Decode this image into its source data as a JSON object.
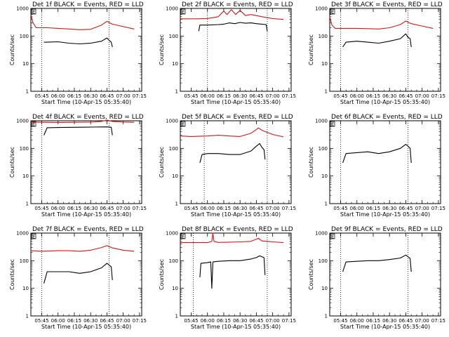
{
  "colors": {
    "events": "#000000",
    "lld": "#d01818",
    "axis": "#000000",
    "background": "#ffffff"
  },
  "chart_data": [
    {
      "type": "line",
      "title": "Det 1f BLACK = Events, RED = LLD",
      "corner_label": "E",
      "xlabel": "Start Time (10-Apr-15 05:35:40)",
      "ylabel": "Counts/sec",
      "yscale": "log",
      "ylim": [
        1,
        1000
      ],
      "y_ticks": [
        "1",
        "10",
        "100",
        "1000"
      ],
      "x_ticks": [
        "05:45",
        "06:00",
        "06:15",
        "06:30",
        "06:45",
        "07:00",
        "07:15"
      ],
      "vlines": [
        "05:45",
        "06:47"
      ],
      "series": [
        {
          "name": "Events",
          "color": "#000000",
          "x": [
            "05:47",
            "05:50",
            "06:00",
            "06:10",
            "06:20",
            "06:30",
            "06:40",
            "06:45",
            "06:47",
            "06:49",
            "06:50"
          ],
          "y": [
            60,
            60,
            62,
            55,
            52,
            55,
            65,
            85,
            70,
            60,
            40
          ]
        },
        {
          "name": "LLD",
          "color": "#d01818",
          "x": [
            "05:35",
            "05:37",
            "05:40",
            "05:50",
            "06:00",
            "06:10",
            "06:20",
            "06:30",
            "06:40",
            "06:45",
            "06:50",
            "07:00",
            "07:10"
          ],
          "y": [
            600,
            300,
            200,
            200,
            190,
            180,
            170,
            175,
            250,
            340,
            270,
            220,
            180
          ]
        }
      ]
    },
    {
      "type": "line",
      "title": "Det 2f BLACK = Events, RED = LLD",
      "corner_label": "E",
      "xlabel": "Start Time (10-Apr-15 05:35:40)",
      "ylabel": "Counts/sec",
      "yscale": "log",
      "ylim": [
        1,
        1000
      ],
      "y_ticks": [
        "1",
        "10",
        "100",
        "1000"
      ],
      "x_ticks": [
        "05:45",
        "06:00",
        "06:15",
        "06:30",
        "06:45",
        "07:00",
        "07:15"
      ],
      "vlines": [
        "06:00",
        "06:55"
      ],
      "series": [
        {
          "name": "Events",
          "color": "#000000",
          "x": [
            "05:52",
            "05:53",
            "06:00",
            "06:10",
            "06:15",
            "06:20",
            "06:25",
            "06:30",
            "06:35",
            "06:40",
            "06:45",
            "06:50",
            "06:54",
            "06:55"
          ],
          "y": [
            150,
            250,
            250,
            260,
            270,
            300,
            280,
            310,
            290,
            300,
            280,
            270,
            260,
            150
          ]
        },
        {
          "name": "LLD",
          "color": "#d01818",
          "x": [
            "05:35",
            "05:50",
            "06:00",
            "06:10",
            "06:15",
            "06:18",
            "06:22",
            "06:26",
            "06:30",
            "06:35",
            "06:40",
            "06:45",
            "06:50",
            "07:00",
            "07:10"
          ],
          "y": [
            420,
            420,
            430,
            500,
            800,
            600,
            900,
            600,
            850,
            550,
            600,
            550,
            500,
            430,
            400
          ]
        }
      ]
    },
    {
      "type": "line",
      "title": "Det 3f BLACK = Events, RED = LLD",
      "corner_label": "E",
      "xlabel": "Start Time (10-Apr-15 05:35:40)",
      "ylabel": "Counts/sec",
      "yscale": "log",
      "ylim": [
        1,
        1000
      ],
      "y_ticks": [
        "1",
        "10",
        "100",
        "1000"
      ],
      "x_ticks": [
        "05:45",
        "06:00",
        "06:15",
        "06:30",
        "06:45",
        "07:00",
        "07:15"
      ],
      "vlines": [
        "05:45",
        "06:47"
      ],
      "series": [
        {
          "name": "Events",
          "color": "#000000",
          "x": [
            "05:47",
            "05:50",
            "06:00",
            "06:10",
            "06:20",
            "06:30",
            "06:40",
            "06:45",
            "06:47",
            "06:49",
            "06:50"
          ],
          "y": [
            40,
            60,
            65,
            60,
            55,
            65,
            80,
            120,
            90,
            80,
            40
          ]
        },
        {
          "name": "LLD",
          "color": "#d01818",
          "x": [
            "05:35",
            "05:37",
            "05:40",
            "05:50",
            "06:00",
            "06:10",
            "06:20",
            "06:30",
            "06:40",
            "06:45",
            "06:50",
            "07:00",
            "07:10"
          ],
          "y": [
            500,
            250,
            190,
            190,
            190,
            185,
            180,
            200,
            260,
            350,
            280,
            230,
            190
          ]
        }
      ]
    },
    {
      "type": "line",
      "title": "Det 4f BLACK = Events, RED = LLD",
      "corner_label": "E",
      "xlabel": "Start Time (10-Apr-15 05:35:40)",
      "ylabel": "Counts/sec",
      "yscale": "log",
      "ylim": [
        1,
        1000
      ],
      "y_ticks": [
        "1",
        "10",
        "100",
        "1000"
      ],
      "x_ticks": [
        "05:45",
        "06:00",
        "06:15",
        "06:30",
        "06:45",
        "07:00",
        "07:15"
      ],
      "vlines": [
        "05:45",
        "06:47"
      ],
      "series": [
        {
          "name": "Events",
          "color": "#000000",
          "x": [
            "05:47",
            "05:50",
            "06:00",
            "06:15",
            "06:30",
            "06:45",
            "06:49",
            "06:50"
          ],
          "y": [
            300,
            560,
            570,
            580,
            590,
            600,
            580,
            300
          ]
        },
        {
          "name": "LLD",
          "color": "#d01818",
          "x": [
            "05:35",
            "05:45",
            "06:00",
            "06:15",
            "06:30",
            "06:40",
            "06:45",
            "06:50",
            "07:00",
            "07:10"
          ],
          "y": [
            900,
            880,
            870,
            880,
            890,
            950,
            1050,
            950,
            900,
            880
          ]
        }
      ]
    },
    {
      "type": "line",
      "title": "Det 5f BLACK = Events, RED = LLD",
      "corner_label": "E",
      "xlabel": "Start Time (10-Apr-15 05:35:40)",
      "ylabel": "Counts/sec",
      "yscale": "log",
      "ylim": [
        1,
        1000
      ],
      "y_ticks": [
        "1",
        "10",
        "100",
        "1000"
      ],
      "x_ticks": [
        "05:45",
        "06:00",
        "06:15",
        "06:30",
        "06:45",
        "07:00",
        "07:15"
      ],
      "vlines": [
        "05:57",
        "06:55"
      ],
      "series": [
        {
          "name": "Events",
          "color": "#000000",
          "x": [
            "05:53",
            "05:55",
            "06:00",
            "06:10",
            "06:20",
            "06:30",
            "06:40",
            "06:45",
            "06:48",
            "06:50",
            "06:52",
            "06:53"
          ],
          "y": [
            30,
            60,
            65,
            65,
            60,
            60,
            80,
            120,
            150,
            110,
            90,
            40
          ]
        },
        {
          "name": "LLD",
          "color": "#d01818",
          "x": [
            "05:35",
            "05:45",
            "06:00",
            "06:10",
            "06:20",
            "06:30",
            "06:40",
            "06:47",
            "06:50",
            "07:00",
            "07:10"
          ],
          "y": [
            280,
            270,
            280,
            300,
            280,
            270,
            350,
            550,
            450,
            320,
            260
          ]
        }
      ]
    },
    {
      "type": "line",
      "title": "Det 6f BLACK = Events, RED = LLD",
      "corner_label": "E",
      "xlabel": "Start Time (10-Apr-15 05:35:40)",
      "ylabel": "Counts/sec",
      "yscale": "log",
      "ylim": [
        1,
        1000
      ],
      "y_ticks": [
        "1",
        "10",
        "100",
        "1000"
      ],
      "x_ticks": [
        "05:45",
        "06:00",
        "06:15",
        "06:30",
        "06:45",
        "07:00",
        "07:15"
      ],
      "vlines": [
        "05:45",
        "06:47"
      ],
      "series": [
        {
          "name": "Events",
          "color": "#000000",
          "x": [
            "05:47",
            "05:50",
            "06:00",
            "06:10",
            "06:20",
            "06:30",
            "06:40",
            "06:45",
            "06:47",
            "06:49",
            "06:50"
          ],
          "y": [
            30,
            65,
            70,
            75,
            65,
            75,
            100,
            140,
            120,
            100,
            30
          ]
        }
      ]
    },
    {
      "type": "line",
      "title": "Det 7f BLACK = Events, RED = LLD",
      "corner_label": "E",
      "xlabel": "Start Time (10-Apr-15 05:35:40)",
      "ylabel": "Counts/sec",
      "yscale": "log",
      "ylim": [
        1,
        1000
      ],
      "y_ticks": [
        "1",
        "10",
        "100",
        "1000"
      ],
      "x_ticks": [
        "05:45",
        "06:00",
        "06:15",
        "06:30",
        "06:45",
        "07:00",
        "07:15"
      ],
      "vlines": [
        "05:45",
        "06:47"
      ],
      "series": [
        {
          "name": "Events",
          "color": "#000000",
          "x": [
            "05:47",
            "05:50",
            "06:00",
            "06:10",
            "06:20",
            "06:30",
            "06:40",
            "06:45",
            "06:47",
            "06:49",
            "06:50"
          ],
          "y": [
            15,
            40,
            40,
            40,
            35,
            40,
            55,
            80,
            70,
            60,
            20
          ]
        },
        {
          "name": "LLD",
          "color": "#d01818",
          "x": [
            "05:35",
            "05:45",
            "06:00",
            "06:10",
            "06:20",
            "06:30",
            "06:40",
            "06:45",
            "06:50",
            "07:00",
            "07:10"
          ],
          "y": [
            230,
            220,
            230,
            230,
            220,
            240,
            300,
            350,
            290,
            240,
            220
          ]
        }
      ]
    },
    {
      "type": "line",
      "title": "Det 8f BLACK = Events, RED = LLD",
      "corner_label": "E",
      "xlabel": "Start Time (10-Apr-15 05:35:40)",
      "ylabel": "Counts/sec",
      "yscale": "log",
      "ylim": [
        1,
        1000
      ],
      "y_ticks": [
        "1",
        "10",
        "100",
        "1000"
      ],
      "x_ticks": [
        "05:45",
        "06:00",
        "06:15",
        "06:30",
        "06:45",
        "07:00",
        "07:15"
      ],
      "vlines": [
        "05:47",
        "06:55"
      ],
      "series": [
        {
          "name": "Events",
          "color": "#000000",
          "x": [
            "05:53",
            "05:54",
            "06:00",
            "06:03",
            "06:04",
            "06:05",
            "06:10",
            "06:20",
            "06:30",
            "06:40",
            "06:45",
            "06:48",
            "06:52",
            "06:53"
          ],
          "y": [
            25,
            80,
            85,
            90,
            10,
            90,
            95,
            100,
            100,
            115,
            130,
            150,
            130,
            30
          ]
        },
        {
          "name": "LLD",
          "color": "#d01818",
          "x": [
            "05:35",
            "05:45",
            "06:00",
            "06:04",
            "06:05",
            "06:06",
            "06:10",
            "06:20",
            "06:30",
            "06:40",
            "06:47",
            "06:50",
            "07:00",
            "07:10"
          ],
          "y": [
            450,
            450,
            450,
            500,
            1000,
            500,
            460,
            470,
            480,
            500,
            650,
            520,
            480,
            450
          ]
        }
      ]
    },
    {
      "type": "line",
      "title": "Det 9f BLACK = Events, RED = LLD",
      "corner_label": "E",
      "xlabel": "Start Time (10-Apr-15 05:35:40)",
      "ylabel": "Counts/sec",
      "yscale": "log",
      "ylim": [
        1,
        1000
      ],
      "y_ticks": [
        "1",
        "10",
        "100",
        "1000"
      ],
      "x_ticks": [
        "05:45",
        "06:00",
        "06:15",
        "06:30",
        "06:45",
        "07:00",
        "07:15"
      ],
      "vlines": [
        "05:45",
        "06:47"
      ],
      "series": [
        {
          "name": "Events",
          "color": "#000000",
          "x": [
            "05:47",
            "05:50",
            "06:00",
            "06:10",
            "06:20",
            "06:30",
            "06:40",
            "06:45",
            "06:47",
            "06:49",
            "06:50"
          ],
          "y": [
            40,
            90,
            95,
            100,
            100,
            110,
            125,
            160,
            140,
            120,
            40
          ]
        }
      ]
    }
  ]
}
